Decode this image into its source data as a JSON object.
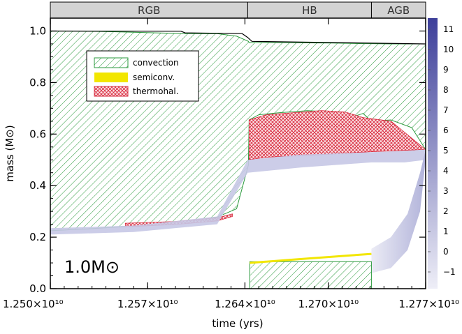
{
  "chart_data": {
    "type": "area",
    "xlabel": "time (yrs)",
    "ylabel": "mass (M⊙)",
    "xlim": [
      12500000000.0,
      12770000000.0
    ],
    "ylim": [
      0.0,
      1.05
    ],
    "x_ticks": [
      {
        "value": 12500000000.0,
        "label": "1.250×10¹⁰"
      },
      {
        "value": 12570000000.0,
        "label": "1.257×10¹⁰"
      },
      {
        "value": 12640000000.0,
        "label": "1.264×10¹⁰"
      },
      {
        "value": 12700000000.0,
        "label": "1.270×10¹⁰"
      },
      {
        "value": 12770000000.0,
        "label": "1.277×10¹⁰"
      }
    ],
    "y_ticks": [
      {
        "value": 0.0,
        "label": "0.0"
      },
      {
        "value": 0.2,
        "label": "0.2"
      },
      {
        "value": 0.4,
        "label": "0.4"
      },
      {
        "value": 0.6,
        "label": "0.6"
      },
      {
        "value": 0.8,
        "label": "0.8"
      },
      {
        "value": 1.0,
        "label": "1.0"
      }
    ],
    "phases": [
      {
        "label": "RGB",
        "x_start": 12500000000.0,
        "x_end": 12642000000.0
      },
      {
        "label": "HB",
        "x_start": 12642000000.0,
        "x_end": 12731000000.0
      },
      {
        "label": "AGB",
        "x_start": 12731000000.0,
        "x_end": 12770000000.0
      }
    ],
    "annotation": "1.0M⊙",
    "legend": {
      "placement": "upper-left",
      "entries": [
        {
          "name": "convection",
          "color": "#2a9a3c"
        },
        {
          "name": "semiconv.",
          "color": "#f2e600"
        },
        {
          "name": "thermohal.",
          "color": "#d8283c"
        }
      ]
    },
    "colorbar": {
      "ticks": [
        "−1",
        "0",
        "1",
        "2",
        "3",
        "4",
        "5",
        "6",
        "7",
        "8",
        "9",
        "10",
        "11"
      ],
      "color_low": "#eeeef7",
      "color_high": "#3d3f9a"
    },
    "total_mass": {
      "x": [
        12500000000.0,
        12594000000.0,
        12597000000.0,
        12638000000.0,
        12642000000.0,
        12645000000.0,
        12770000000.0
      ],
      "y": [
        1.0,
        0.999,
        0.993,
        0.99,
        0.975,
        0.96,
        0.95
      ]
    },
    "envelope_convection": {
      "x": [
        12500000000.0,
        12530000000.0,
        12560000000.0,
        12595000000.0,
        12620000000.0,
        12634000000.0,
        12642500000.0,
        12643000000.0,
        12650000000.0,
        12665000000.0,
        12685000000.0,
        12703000000.0,
        12716000000.0,
        12725000000.0,
        12731000000.0,
        12745000000.0,
        12760000000.0,
        12770000000.0
      ],
      "bottom": [
        0.225,
        0.233,
        0.243,
        0.258,
        0.278,
        0.31,
        0.48,
        0.655,
        0.675,
        0.683,
        0.691,
        0.686,
        0.664,
        0.68,
        0.65,
        0.655,
        0.625,
        0.54
      ],
      "top": [
        1.0,
        0.999,
        0.995,
        0.99,
        0.99,
        0.98,
        0.96,
        0.955,
        0.955,
        0.955,
        0.954,
        0.953,
        0.952,
        0.951,
        0.951,
        0.95,
        0.95,
        0.95
      ]
    },
    "thermohaline_rgb": {
      "x": [
        12554000000.0,
        12590000000.0,
        12620000000.0,
        12631000000.0
      ],
      "y_bottom": [
        0.24,
        0.249,
        0.263,
        0.28
      ],
      "y_top": [
        0.254,
        0.261,
        0.275,
        0.29
      ]
    },
    "thermohaline_hb": {
      "x": [
        12643000000.0,
        12655000000.0,
        12675000000.0,
        12695000000.0,
        12712000000.0,
        12725000000.0,
        12745000000.0,
        12770000000.0
      ],
      "y_bottom": [
        0.5,
        0.51,
        0.515,
        0.52,
        0.525,
        0.53,
        0.535,
        0.54
      ],
      "y_top": [
        0.655,
        0.675,
        0.683,
        0.691,
        0.686,
        0.664,
        0.65,
        0.54
      ]
    },
    "core_convection": {
      "x": [
        12643500000.0,
        12731000000.0
      ],
      "y_bottom": [
        0.0,
        0.0
      ],
      "y_top": [
        0.105,
        0.105
      ]
    },
    "semiconvection": {
      "x": [
        12643500000.0,
        12680000000.0,
        12731000000.0
      ],
      "y": [
        0.1,
        0.115,
        0.135
      ]
    },
    "burning_shell": {
      "x": [
        12500000000.0,
        12560000000.0,
        12620000000.0,
        12642000000.0,
        12680000000.0,
        12731000000.0,
        12755000000.0,
        12770000000.0
      ],
      "y_bottom": [
        0.21,
        0.22,
        0.25,
        0.45,
        0.47,
        0.49,
        0.49,
        0.5
      ],
      "y_top": [
        0.235,
        0.245,
        0.28,
        0.5,
        0.52,
        0.53,
        0.535,
        0.54
      ]
    },
    "agb_burning_fan": {
      "x": [
        12731000000.0,
        12745000000.0,
        12757000000.0,
        12766000000.0,
        12770000000.0
      ],
      "y_bottom": [
        0.06,
        0.08,
        0.15,
        0.3,
        0.5
      ],
      "y_top": [
        0.155,
        0.2,
        0.29,
        0.45,
        0.54
      ]
    }
  }
}
